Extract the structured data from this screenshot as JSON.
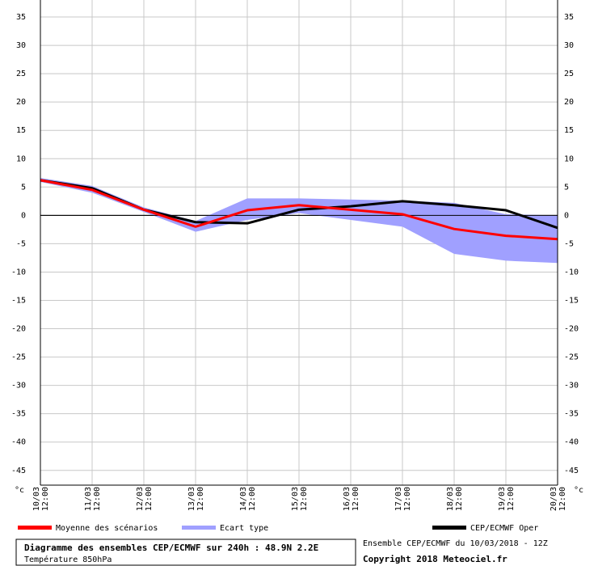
{
  "chart_data": {
    "type": "line",
    "categories": [
      "10/03 12:00",
      "11/03 12:00",
      "12/03 12:00",
      "13/03 12:00",
      "14/03 12:00",
      "15/03 12:00",
      "16/03 12:00",
      "17/03 12:00",
      "18/03 12:00",
      "19/03 12:00",
      "20/03 12:00"
    ],
    "y_unit": "°c",
    "ylim": [
      -47.6,
      38
    ],
    "yticks": [
      -45,
      -40,
      -35,
      -30,
      -25,
      -20,
      -15,
      -10,
      -5,
      0,
      5,
      10,
      15,
      20,
      25,
      30,
      35
    ],
    "grid": true,
    "band": {
      "name": "Ecart type",
      "color": "#a0a0ff",
      "upper": [
        6.6,
        5.2,
        1.4,
        -1.0,
        3.0,
        3.0,
        2.8,
        2.6,
        2.2,
        0.2,
        0.0
      ],
      "lower": [
        5.9,
        4.0,
        0.6,
        -2.9,
        -0.8,
        0.4,
        -0.8,
        -2.0,
        -6.8,
        -8.0,
        -8.4
      ]
    },
    "series": [
      {
        "name": "Moyenne des scénarios",
        "color": "#ff0000",
        "values": [
          6.2,
          4.5,
          1.0,
          -2.0,
          0.9,
          1.8,
          1.0,
          0.2,
          -2.4,
          -3.6,
          -4.2
        ]
      },
      {
        "name": "CEP/ECMWF Oper",
        "color": "#000000",
        "values": [
          6.2,
          4.8,
          1.0,
          -1.2,
          -1.4,
          1.0,
          1.6,
          2.5,
          1.8,
          0.9,
          -2.2
        ]
      }
    ],
    "title": "Diagramme des ensembles CEP/ECMWF sur 240h : 48.9N 2.2E",
    "subtitle": "Température 850hPa",
    "run_info": "Ensemble CEP/ECMWF du 10/03/2018 - 12Z",
    "copyright": "Copyright 2018 Meteociel.fr"
  }
}
